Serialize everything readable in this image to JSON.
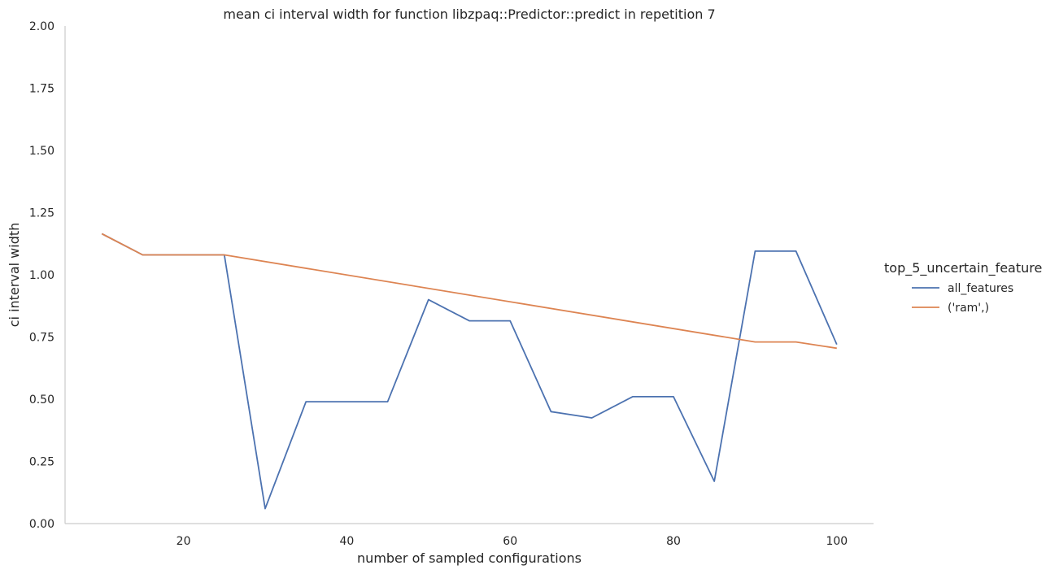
{
  "chart_data": {
    "type": "line",
    "title": "mean ci interval width for function libzpaq::Predictor::predict in repetition 7",
    "xlabel": "number of sampled configurations",
    "ylabel": "ci interval width",
    "xlim": [
      5.5,
      104.5
    ],
    "ylim": [
      0,
      2
    ],
    "xticks": [
      20,
      40,
      60,
      80,
      100
    ],
    "xtick_labels": [
      "20",
      "40",
      "60",
      "80",
      "100"
    ],
    "yticks": [
      0,
      0.25,
      0.5,
      0.75,
      1.0,
      1.25,
      1.5,
      1.75,
      2.0
    ],
    "ytick_labels": [
      "0.00",
      "0.25",
      "0.50",
      "0.75",
      "1.00",
      "1.25",
      "1.50",
      "1.75",
      "2.00"
    ],
    "grid": false,
    "legend": {
      "title": "top_5_uncertain_feature",
      "position": "right"
    },
    "series": [
      {
        "name": "all_features",
        "color": "#4c72b0",
        "x": [
          10,
          15,
          20,
          25,
          30,
          35,
          40,
          45,
          50,
          55,
          60,
          65,
          70,
          75,
          80,
          85,
          90,
          95,
          100
        ],
        "y": [
          1.165,
          1.08,
          1.08,
          1.08,
          0.06,
          0.49,
          0.49,
          0.49,
          0.9,
          0.815,
          0.815,
          0.45,
          0.425,
          0.51,
          0.51,
          0.17,
          1.095,
          1.095,
          0.72
        ]
      },
      {
        "name": "('ram',)",
        "color": "#dd8452",
        "x": [
          10,
          15,
          20,
          25,
          90,
          95,
          100
        ],
        "y": [
          1.165,
          1.08,
          1.08,
          1.08,
          0.73,
          0.73,
          0.705
        ]
      }
    ]
  }
}
